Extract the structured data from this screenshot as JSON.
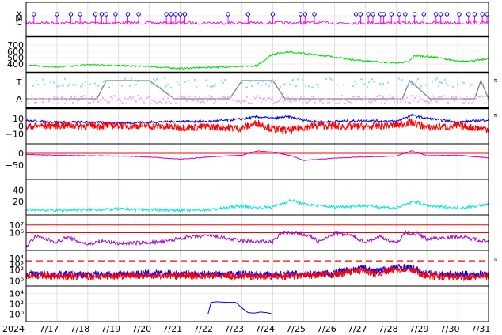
{
  "chart_data": [
    {
      "type": "line",
      "panel": "xray-flares",
      "ylabels": [
        "X",
        "M",
        "C"
      ],
      "colors": {
        "line": "#ff00ff",
        "marker": "#0000ff"
      },
      "flare_marker_days": [
        0.25,
        1.0,
        1.45,
        1.75,
        2.25,
        2.45,
        2.6,
        2.9,
        3.3,
        3.65,
        4.55,
        4.7,
        4.85,
        5.0,
        5.15,
        6.55,
        7.2,
        8.0,
        8.9,
        9.05,
        9.35,
        10.7,
        10.85,
        11.1,
        11.25,
        11.5,
        11.6,
        11.85,
        12.1,
        12.3,
        12.6,
        12.9,
        13.3,
        13.45,
        13.65,
        14.05,
        14.35,
        14.55,
        14.8,
        14.95
      ]
    },
    {
      "type": "line",
      "panel": "solar-wind-speed",
      "yticks": [
        "700",
        "600",
        "500",
        "400"
      ],
      "ylim": [
        300,
        800
      ],
      "colors": {
        "line": "#00dd00"
      },
      "series": [
        {
          "x": [
            0,
            1,
            1.5,
            2,
            2.5,
            3,
            4,
            5,
            6,
            7,
            7.5,
            8,
            8.5,
            9,
            9.5,
            10,
            10.5,
            11,
            11.5,
            12,
            12.4,
            12.6,
            13,
            13.5,
            14,
            14.5,
            15
          ],
          "values": [
            380,
            355,
            365,
            390,
            385,
            375,
            360,
            330,
            350,
            360,
            375,
            560,
            590,
            570,
            540,
            510,
            470,
            450,
            430,
            420,
            430,
            530,
            520,
            490,
            440,
            450,
            480
          ]
        }
      ]
    },
    {
      "type": "line",
      "panel": "imf-sector",
      "ylabels": [
        "T",
        "A"
      ],
      "colors": {
        "step": "#808080",
        "toward": "#88ddff",
        "away": "#ffaaee"
      },
      "right_label": "π",
      "sector_changes": [
        {
          "x": [
            0,
            2.3,
            2.6,
            3.3,
            4.0,
            4.8,
            6.6,
            7.0,
            8.0,
            8.4,
            12.2,
            12.45,
            13.1,
            14.55,
            14.75,
            15
          ],
          "values": [
            "A",
            "A",
            "T",
            "T",
            "T",
            "A",
            "A",
            "T",
            "T",
            "A",
            "A",
            "T",
            "A",
            "A",
            "T",
            "A"
          ]
        }
      ]
    },
    {
      "type": "line",
      "panel": "imf-bz-bt",
      "yticks": [
        "10",
        "0",
        "−10"
      ],
      "ylim": [
        -20,
        20
      ],
      "colors": {
        "bt": "#0000ff",
        "bz": "#ff0000",
        "zero": "#ff0000"
      },
      "right_label": "π",
      "series": [
        {
          "name": "Bt",
          "x": [
            0,
            1,
            2,
            3,
            4,
            5,
            6,
            7,
            7.5,
            8,
            8.5,
            9,
            9.5,
            10,
            11,
            12,
            12.5,
            13,
            14,
            15
          ],
          "values": [
            7,
            5,
            5,
            4,
            5,
            6,
            6,
            9,
            12,
            10,
            12,
            8,
            5,
            6,
            7,
            6,
            14,
            10,
            5,
            8
          ]
        },
        {
          "name": "Bz",
          "x": [
            0,
            1,
            2,
            3,
            4,
            5,
            6,
            7,
            7.5,
            8,
            8.5,
            9,
            9.5,
            10,
            11,
            12,
            12.5,
            13,
            14,
            15
          ],
          "values": [
            -1,
            1,
            0,
            1,
            0,
            -2,
            -1,
            -3,
            4,
            -4,
            -6,
            -2,
            1,
            0,
            -1,
            1,
            5,
            -2,
            0,
            -4
          ]
        }
      ]
    },
    {
      "type": "line",
      "panel": "dst",
      "yticks": [
        "0",
        "−50"
      ],
      "ylim": [
        -100,
        30
      ],
      "colors": {
        "line": "#cc00cc",
        "zero": "#ff0000"
      },
      "series": [
        {
          "x": [
            0,
            1,
            2,
            3,
            4,
            5,
            5.5,
            6,
            7,
            7.5,
            8,
            8.6,
            9,
            9.5,
            10,
            11,
            12,
            12.5,
            13,
            14,
            15
          ],
          "values": [
            -5,
            -8,
            -10,
            -12,
            -15,
            -25,
            -20,
            -15,
            -8,
            10,
            5,
            -10,
            -30,
            -25,
            -20,
            -15,
            -12,
            10,
            -10,
            -8,
            -20
          ]
        }
      ]
    },
    {
      "type": "line",
      "panel": "kp-ap",
      "yticks": [
        "40",
        "20"
      ],
      "ylim": [
        0,
        55
      ],
      "colors": {
        "line": "#00e5e5"
      },
      "series": [
        {
          "x": [
            0,
            1,
            2,
            3,
            4,
            5,
            6,
            7,
            7.5,
            8,
            8.6,
            9,
            9.5,
            10,
            11,
            12,
            12.6,
            13,
            14,
            15
          ],
          "values": [
            5,
            4,
            5,
            6,
            5,
            4,
            5,
            12,
            8,
            10,
            22,
            15,
            12,
            10,
            12,
            8,
            20,
            12,
            8,
            14
          ]
        }
      ]
    },
    {
      "type": "line",
      "panel": "electron-flux",
      "yticks": [
        "10⁷",
        "10⁶"
      ],
      "ylim": [
        4,
        8
      ],
      "log_scale": true,
      "colors": {
        "line": "#9900cc",
        "thresholds": "#ff0000"
      },
      "series": [
        {
          "x": [
            0,
            0.3,
            1,
            1.3,
            2,
            2.5,
            3,
            4.5,
            5,
            6,
            7,
            8,
            8.3,
            8.7,
            9.2,
            9.5,
            10,
            10.5,
            11,
            11.5,
            12,
            12.3,
            12.7,
            13,
            14,
            15
          ],
          "values": [
            4.2,
            5.5,
            4.8,
            5.4,
            4.5,
            4.9,
            4.6,
            4.8,
            5.3,
            5.6,
            4.9,
            4.8,
            6.0,
            5.9,
            5.6,
            4.8,
            5.9,
            5.7,
            4.8,
            5.5,
            4.6,
            6.0,
            5.8,
            5.2,
            5.5,
            4.9
          ]
        }
      ]
    },
    {
      "type": "line",
      "panel": "proton-flux",
      "yticks": [
        "10⁴",
        "10³",
        "10²",
        "10⁰"
      ],
      "ylim": [
        -0.5,
        5
      ],
      "log_scale": true,
      "colors": {
        "high": "#0000ff",
        "low": "#ff0000",
        "threshold": "#ff0000"
      },
      "right_label": "π",
      "series": [
        {
          "name": "high",
          "x": [
            0,
            2,
            4,
            6,
            8,
            10,
            10.5,
            11,
            11.3,
            12,
            12.5,
            13,
            14,
            15
          ],
          "values": [
            1.2,
            1.1,
            1.3,
            1.2,
            1.1,
            1.4,
            2.0,
            2.2,
            1.7,
            2.4,
            2.3,
            1.3,
            1.1,
            1.2
          ]
        },
        {
          "name": "low",
          "x": [
            0,
            2,
            4,
            6,
            8,
            10,
            10.5,
            11,
            11.3,
            12,
            12.5,
            13,
            14,
            15
          ],
          "values": [
            0.9,
            0.8,
            1.0,
            0.9,
            0.8,
            1.1,
            1.6,
            1.9,
            1.2,
            2.1,
            2.0,
            0.9,
            0.7,
            0.8
          ]
        }
      ]
    },
    {
      "type": "line",
      "panel": "electron-ratio",
      "yticks": [
        "10⁴",
        "10²",
        "10⁰"
      ],
      "ylim": [
        -1,
        5
      ],
      "log_scale": true,
      "colors": {
        "line": "#0000ff"
      },
      "series": [
        {
          "x": [
            0,
            5.9,
            6.0,
            6.2,
            6.5,
            6.8,
            7.0,
            7.2,
            7.4,
            7.6,
            7.8,
            8.0,
            15
          ],
          "values": [
            0,
            0,
            2.3,
            2.4,
            2.3,
            2.3,
            1.2,
            0.3,
            0.2,
            0.4,
            0.3,
            0,
            0
          ]
        }
      ]
    }
  ],
  "xaxis": {
    "year": "2024",
    "ticks": [
      "7/17",
      "7/18",
      "7/19",
      "7/20",
      "7/21",
      "7/22",
      "7/23",
      "7/24",
      "7/25",
      "7/26",
      "7/27",
      "7/28",
      "7/29",
      "7/30",
      "7/31"
    ],
    "range": [
      0,
      15
    ]
  }
}
